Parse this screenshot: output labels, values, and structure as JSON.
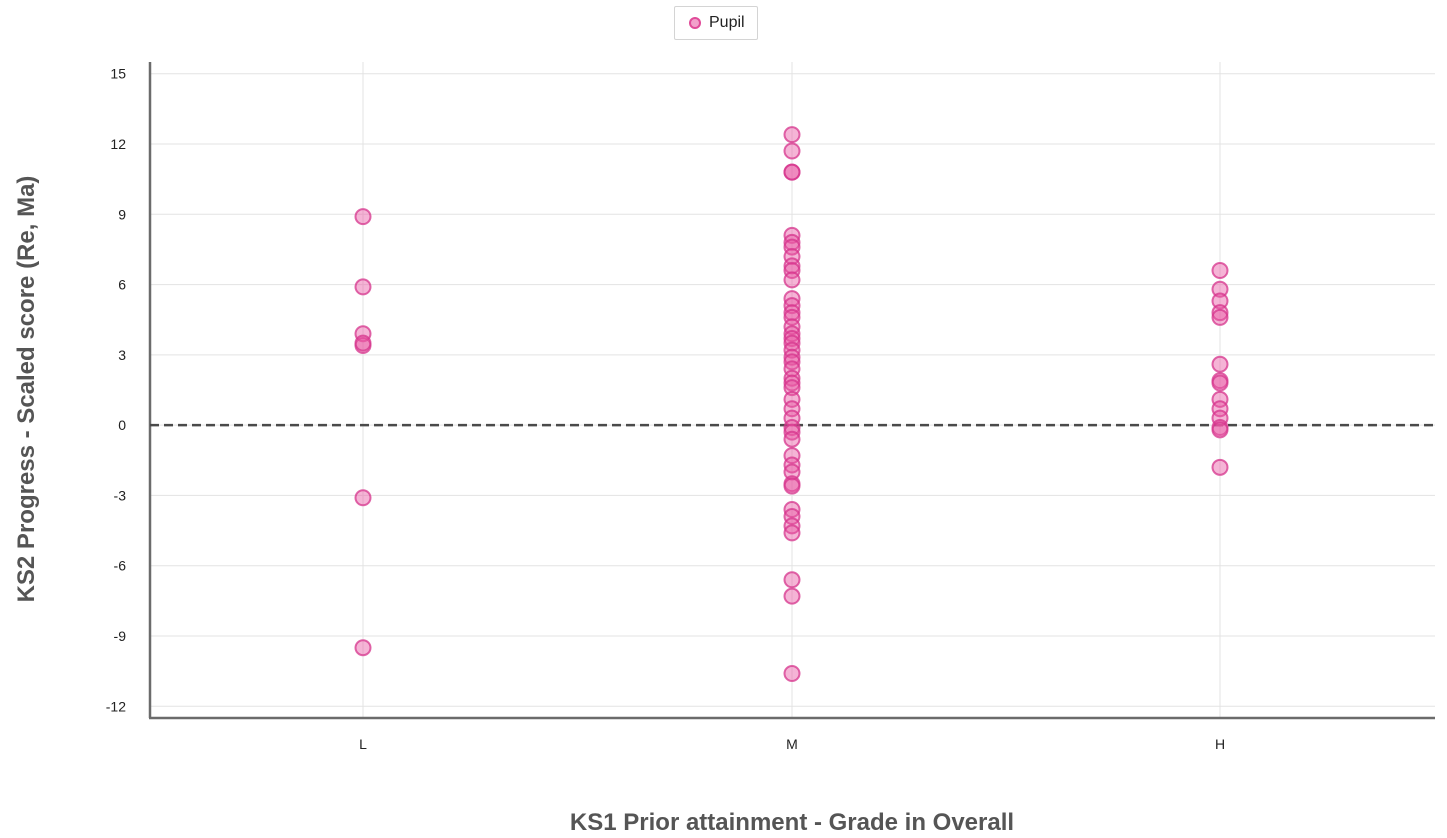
{
  "chart_data": {
    "type": "scatter",
    "title": "",
    "xlabel": "KS1 Prior attainment - Grade in Overall",
    "ylabel": "KS2 Progress - Scaled score (Re, Ma)",
    "categories": [
      "L",
      "M",
      "H"
    ],
    "ylim": [
      -12.5,
      15.5
    ],
    "yticks": [
      15,
      12,
      9,
      6,
      3,
      0,
      -3,
      -6,
      -9,
      -12
    ],
    "grid": true,
    "reference_line": 0,
    "legend_position": "top-center",
    "series": [
      {
        "name": "Pupil",
        "color": "#e0409a",
        "points": [
          {
            "x": "L",
            "y": 8.9
          },
          {
            "x": "L",
            "y": 5.9
          },
          {
            "x": "L",
            "y": 3.9
          },
          {
            "x": "L",
            "y": 3.4
          },
          {
            "x": "L",
            "y": 3.5
          },
          {
            "x": "L",
            "y": -3.1
          },
          {
            "x": "L",
            "y": -9.5
          },
          {
            "x": "M",
            "y": 12.4
          },
          {
            "x": "M",
            "y": 11.7
          },
          {
            "x": "M",
            "y": 10.8
          },
          {
            "x": "M",
            "y": 10.8
          },
          {
            "x": "M",
            "y": 8.1
          },
          {
            "x": "M",
            "y": 7.8
          },
          {
            "x": "M",
            "y": 7.6
          },
          {
            "x": "M",
            "y": 7.2
          },
          {
            "x": "M",
            "y": 6.8
          },
          {
            "x": "M",
            "y": 6.6
          },
          {
            "x": "M",
            "y": 6.2
          },
          {
            "x": "M",
            "y": 5.4
          },
          {
            "x": "M",
            "y": 5.1
          },
          {
            "x": "M",
            "y": 4.8
          },
          {
            "x": "M",
            "y": 4.6
          },
          {
            "x": "M",
            "y": 4.2
          },
          {
            "x": "M",
            "y": 3.9
          },
          {
            "x": "M",
            "y": 3.7
          },
          {
            "x": "M",
            "y": 3.5
          },
          {
            "x": "M",
            "y": 3.2
          },
          {
            "x": "M",
            "y": 2.9
          },
          {
            "x": "M",
            "y": 2.7
          },
          {
            "x": "M",
            "y": 2.4
          },
          {
            "x": "M",
            "y": 2.0
          },
          {
            "x": "M",
            "y": 1.8
          },
          {
            "x": "M",
            "y": 1.6
          },
          {
            "x": "M",
            "y": 1.1
          },
          {
            "x": "M",
            "y": 0.7
          },
          {
            "x": "M",
            "y": 0.3
          },
          {
            "x": "M",
            "y": -0.1
          },
          {
            "x": "M",
            "y": -0.3
          },
          {
            "x": "M",
            "y": -0.6
          },
          {
            "x": "M",
            "y": -1.3
          },
          {
            "x": "M",
            "y": -1.7
          },
          {
            "x": "M",
            "y": -2.0
          },
          {
            "x": "M",
            "y": -2.5
          },
          {
            "x": "M",
            "y": -2.6
          },
          {
            "x": "M",
            "y": -3.6
          },
          {
            "x": "M",
            "y": -3.9
          },
          {
            "x": "M",
            "y": -4.3
          },
          {
            "x": "M",
            "y": -4.6
          },
          {
            "x": "M",
            "y": -6.6
          },
          {
            "x": "M",
            "y": -7.3
          },
          {
            "x": "M",
            "y": -10.6
          },
          {
            "x": "H",
            "y": 6.6
          },
          {
            "x": "H",
            "y": 5.8
          },
          {
            "x": "H",
            "y": 5.3
          },
          {
            "x": "H",
            "y": 4.8
          },
          {
            "x": "H",
            "y": 4.6
          },
          {
            "x": "H",
            "y": 2.6
          },
          {
            "x": "H",
            "y": 1.9
          },
          {
            "x": "H",
            "y": 1.8
          },
          {
            "x": "H",
            "y": 1.1
          },
          {
            "x": "H",
            "y": 0.7
          },
          {
            "x": "H",
            "y": 0.3
          },
          {
            "x": "H",
            "y": -0.1
          },
          {
            "x": "H",
            "y": -0.2
          },
          {
            "x": "H",
            "y": -1.8
          }
        ]
      }
    ]
  }
}
